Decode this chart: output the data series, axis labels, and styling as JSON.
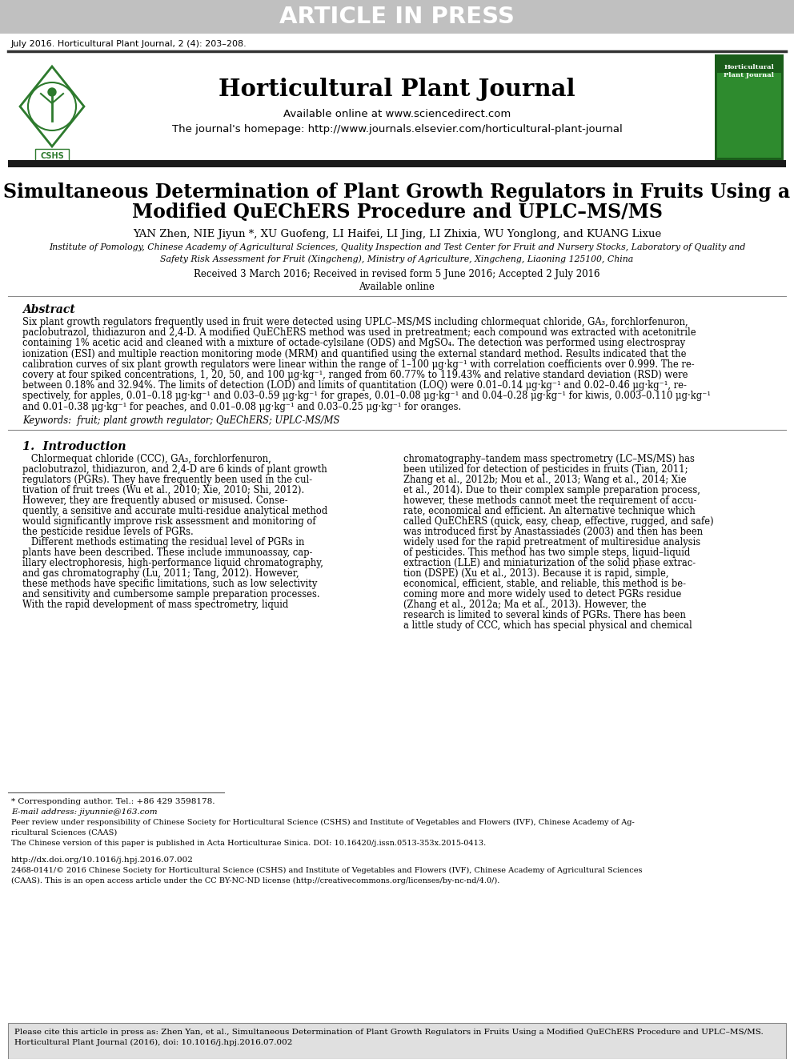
{
  "bg_color": "#ffffff",
  "header_bar_color": "#c0c0c0",
  "header_bar_text": "ARTICLE IN PRESS",
  "header_bar_text_color": "#ffffff",
  "journal_citation": "July 2016. Horticultural Plant Journal, 2 (4): 203–208.",
  "journal_title": "Horticultural Plant Journal",
  "journal_available": "Available online at www.sciencedirect.com",
  "journal_homepage": "The journal's homepage: http://www.journals.elsevier.com/horticultural-plant-journal",
  "paper_title_line1": "Simultaneous Determination of Plant Growth Regulators in Fruits Using a",
  "paper_title_line2": "Modified QuEChERS Procedure and UPLC–MS/MS",
  "authors": "YAN Zhen, NIE Jiyun *, XU Guofeng, LI Haifei, LI Jing, LI Zhixia, WU Yonglong, and KUANG Lixue",
  "affiliation_line1": "Institute of Pomology, Chinese Academy of Agricultural Sciences, Quality Inspection and Test Center for Fruit and Nursery Stocks, Laboratory of Quality and",
  "affiliation_line2": "Safety Risk Assessment for Fruit (Xingcheng), Ministry of Agriculture, Xingcheng, Liaoning 125100, China",
  "received": "Received 3 March 2016; Received in revised form 5 June 2016; Accepted 2 July 2016",
  "available_online": "Available online",
  "abstract_title": "Abstract",
  "abstract_lines": [
    "Six plant growth regulators frequently used in fruit were detected using UPLC–MS/MS including chlormequat chloride, GA₃, forchlorfenuron,",
    "paclobutrazol, thidiazuron and 2,4-D. A modified QuEChERS method was used in pretreatment; each compound was extracted with acetonitrile",
    "containing 1% acetic acid and cleaned with a mixture of octade-cylsilane (ODS) and MgSO₄. The detection was performed using electrospray",
    "ionization (ESI) and multiple reaction monitoring mode (MRM) and quantified using the external standard method. Results indicated that the",
    "calibration curves of six plant growth regulators were linear within the range of 1–100 μg·kg⁻¹ with correlation coefficients over 0.999. The re-",
    "covery at four spiked concentrations, 1, 20, 50, and 100 μg·kg⁻¹, ranged from 60.77% to 119.43% and relative standard deviation (RSD) were",
    "between 0.18% and 32.94%. The limits of detection (LOD) and limits of quantitation (LOQ) were 0.01–0.14 μg·kg⁻¹ and 0.02–0.46 μg·kg⁻¹, re-",
    "spectively, for apples, 0.01–0.18 μg·kg⁻¹ and 0.03–0.59 μg·kg⁻¹ for grapes, 0.01–0.08 μg·kg⁻¹ and 0.04–0.28 μg·kg⁻¹ for kiwis, 0.003–0.110 μg·kg⁻¹",
    "and 0.01–0.38 μg·kg⁻¹ for peaches, and 0.01–0.08 μg·kg⁻¹ and 0.03–0.25 μg·kg⁻¹ for oranges."
  ],
  "keywords": "Keywords:  fruit; plant growth regulator; QuEChERS; UPLC-MS/MS",
  "intro_title": "1.  Introduction",
  "intro_col1_lines": [
    "   Chlormequat chloride (CCC), GA₃, forchlorfenuron,",
    "paclobutrazol, thidiazuron, and 2,4-D are 6 kinds of plant growth",
    "regulators (PGRs). They have frequently been used in the cul-",
    "tivation of fruit trees (Wu et al., 2010; Xie, 2010; Shi, 2012).",
    "However, they are frequently abused or misused. Conse-",
    "quently, a sensitive and accurate multi-residue analytical method",
    "would significantly improve risk assessment and monitoring of",
    "the pesticide residue levels of PGRs.",
    "   Different methods estimating the residual level of PGRs in",
    "plants have been described. These include immunoassay, cap-",
    "illary electrophoresis, high-performance liquid chromatography,",
    "and gas chromatography (Lu, 2011; Tang, 2012). However,",
    "these methods have specific limitations, such as low selectivity",
    "and sensitivity and cumbersome sample preparation processes.",
    "With the rapid development of mass spectrometry, liquid"
  ],
  "intro_col2_lines": [
    "chromatography–tandem mass spectrometry (LC–MS/MS) has",
    "been utilized for detection of pesticides in fruits (Tian, 2011;",
    "Zhang et al., 2012b; Mou et al., 2013; Wang et al., 2014; Xie",
    "et al., 2014). Due to their complex sample preparation process,",
    "however, these methods cannot meet the requirement of accu-",
    "rate, economical and efficient. An alternative technique which",
    "called QuEChERS (quick, easy, cheap, effective, rugged, and safe)",
    "was introduced first by Anastassiades (2003) and then has been",
    "widely used for the rapid pretreatment of multiresidue analysis",
    "of pesticides. This method has two simple steps, liquid–liquid",
    "extraction (LLE) and miniaturization of the solid phase extrac-",
    "tion (DSPE) (Xu et al., 2013). Because it is rapid, simple,",
    "economical, efficient, stable, and reliable, this method is be-",
    "coming more and more widely used to detect PGRs residue",
    "(Zhang et al., 2012a; Ma et al., 2013). However, the",
    "research is limited to several kinds of PGRs. There has been",
    "a little study of CCC, which has special physical and chemical"
  ],
  "footnote_star": "* Corresponding author. Tel.: +86 429 3598178.",
  "footnote_email": "E-mail address: jiyunnie@163.com",
  "footnote_peer_line1": "Peer review under responsibility of Chinese Society for Horticultural Science (CSHS) and Institute of Vegetables and Flowers (IVF), Chinese Academy of Ag-",
  "footnote_peer_line2": "ricultural Sciences (CAAS)",
  "footnote_chinese": "The Chinese version of this paper is published in Acta Horticulturae Sinica. DOI: 10.16420/j.issn.0513-353x.2015-0413.",
  "doi_line": "http://dx.doi.org/10.1016/j.hpj.2016.07.002",
  "copyright_line1": "2468-0141/© 2016 Chinese Society for Horticultural Science (CSHS) and Institute of Vegetables and Flowers (IVF), Chinese Academy of Agricultural Sciences",
  "copyright_line2": "(CAAS). This is an open access article under the CC BY-NC-ND license (http://creativecommons.org/licenses/by-nc-nd/4.0/).",
  "cite_line1": "Please cite this article in press as: Zhen Yan, et al., Simultaneous Determination of Plant Growth Regulators in Fruits Using a Modified QuEChERS Procedure and UPLC–MS/MS.",
  "cite_line2": "Horticultural Plant Journal (2016), doi: 10.1016/j.hpj.2016.07.002",
  "separator_color": "#555555",
  "dark_bar_color": "#1a1a1a",
  "cshs_green": "#2d7a2d",
  "cite_box_color": "#e0e0e0"
}
